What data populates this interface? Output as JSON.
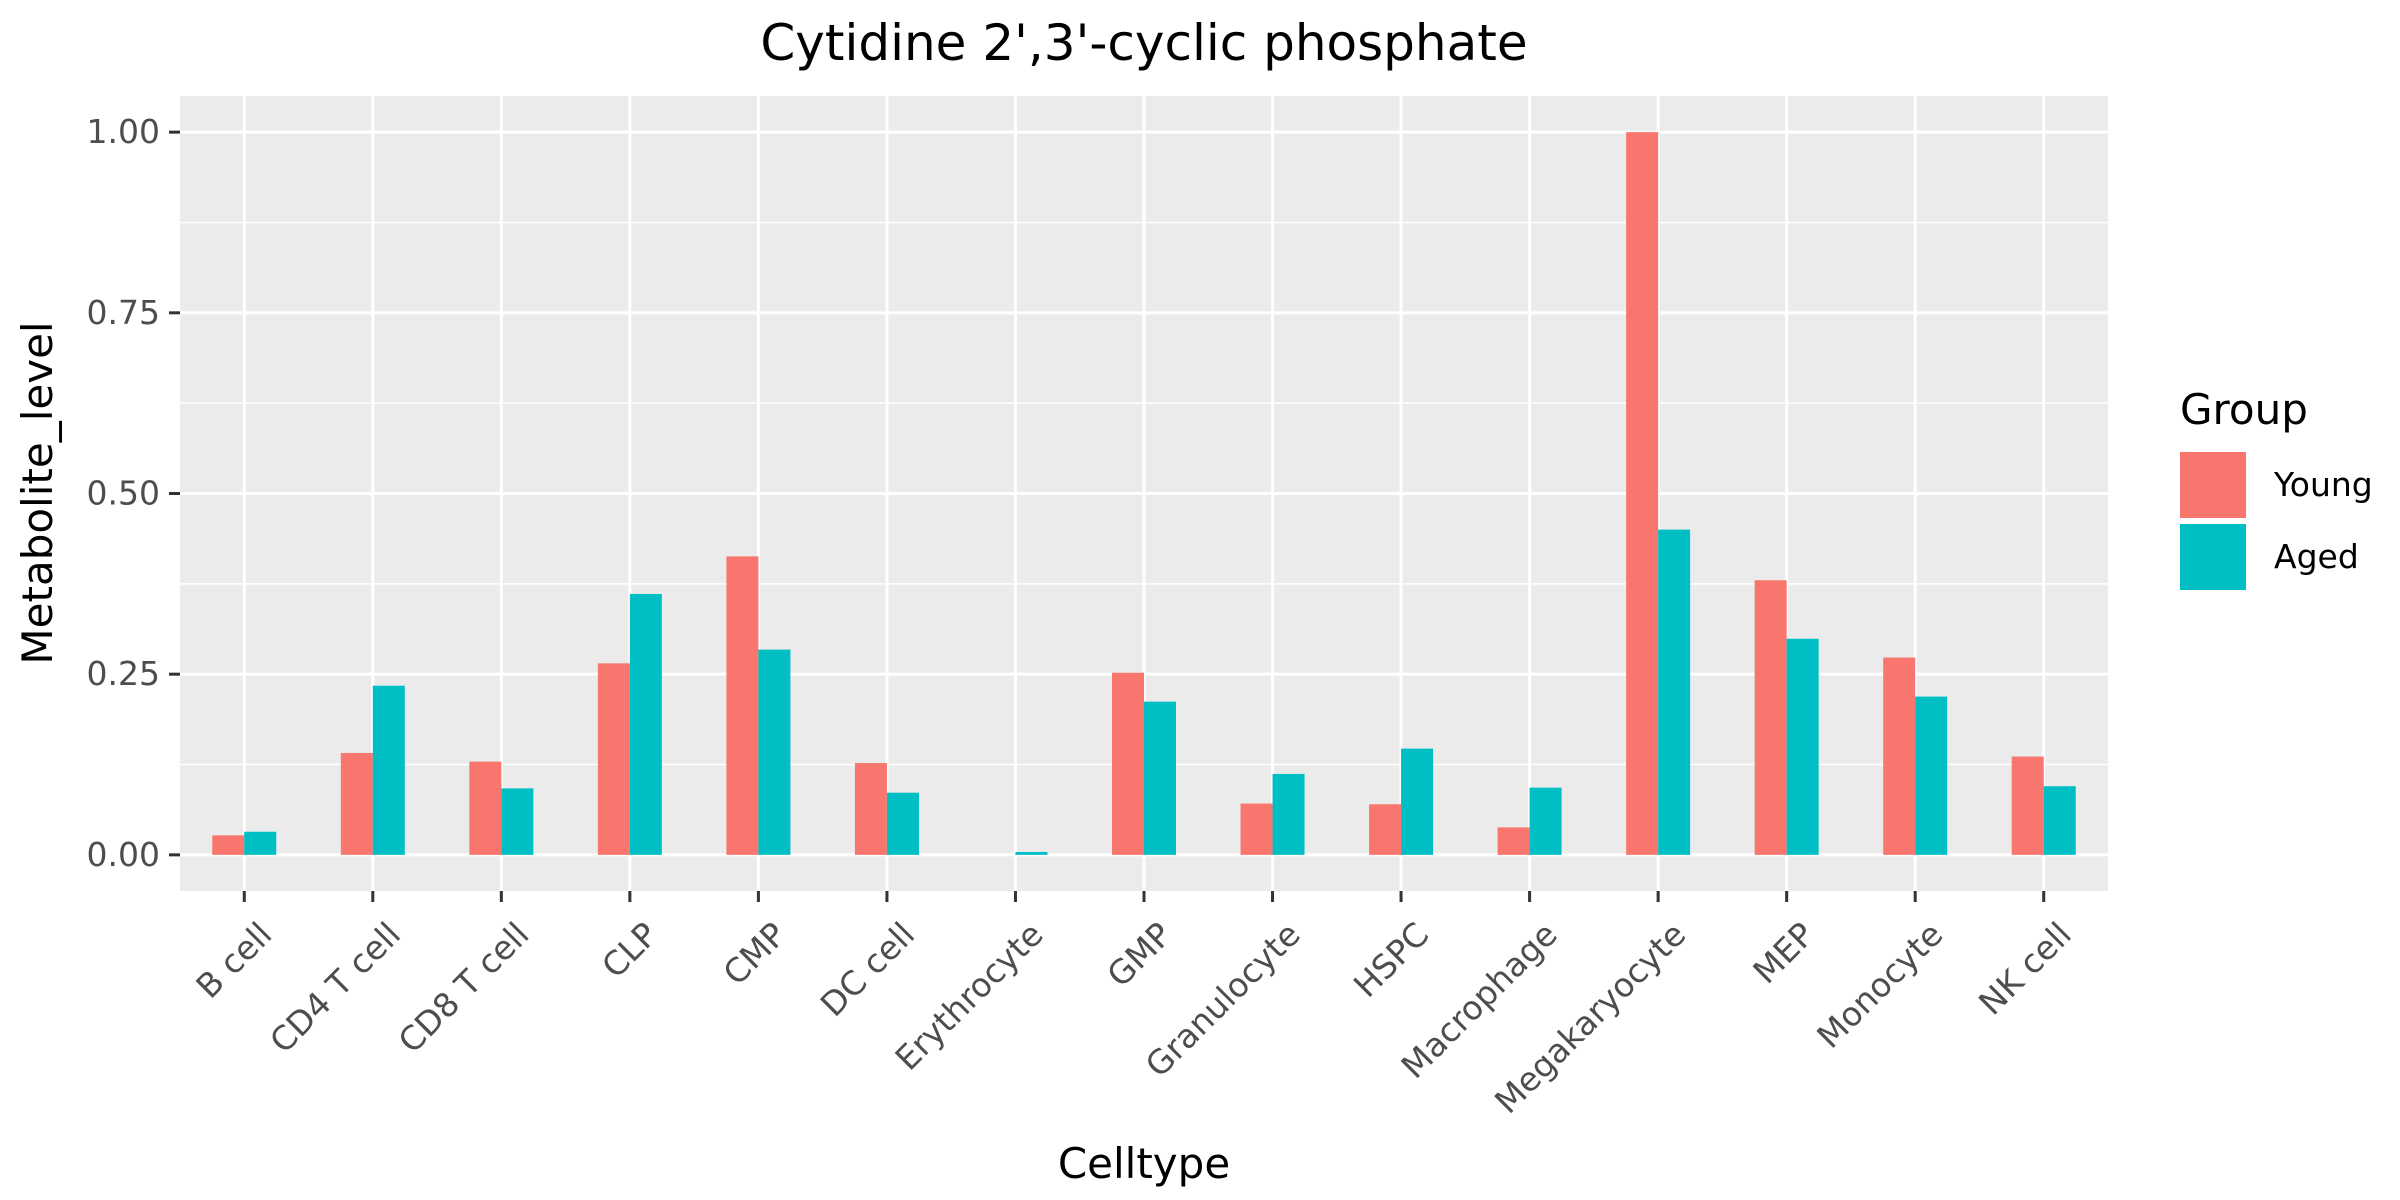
{
  "chart_data": {
    "type": "bar",
    "title": "Cytidine 2',3'-cyclic phosphate",
    "xlabel": "Celltype",
    "ylabel": "Metabolite_level",
    "categories": [
      "B cell",
      "CD4 T cell",
      "CD8 T cell",
      "CLP",
      "CMP",
      "DC cell",
      "Erythrocyte",
      "GMP",
      "Granulocyte",
      "HSPC",
      "Macrophage",
      "Megakaryocyte",
      "MEP",
      "Monocyte",
      "NK cell"
    ],
    "series": [
      {
        "name": "Young",
        "color": "#F8766D",
        "values": [
          0.027,
          0.141,
          0.129,
          0.265,
          0.413,
          0.127,
          0.0,
          0.252,
          0.071,
          0.07,
          0.038,
          1.0,
          0.38,
          0.273,
          0.136
        ]
      },
      {
        "name": "Aged",
        "color": "#00BFC4",
        "values": [
          0.032,
          0.234,
          0.092,
          0.361,
          0.284,
          0.086,
          0.004,
          0.212,
          0.112,
          0.147,
          0.093,
          0.45,
          0.299,
          0.219,
          0.095
        ]
      }
    ],
    "ylim": [
      -0.05,
      1.05
    ],
    "yticks": [
      0.0,
      0.25,
      0.5,
      0.75,
      1.0
    ],
    "ytick_labels": [
      "0.00",
      "0.25",
      "0.50",
      "0.75",
      "1.00"
    ],
    "legend_title": "Group",
    "legend_position": "right",
    "grid": true,
    "panel_background": "#EBEBEB",
    "grid_color": "#FFFFFF"
  }
}
